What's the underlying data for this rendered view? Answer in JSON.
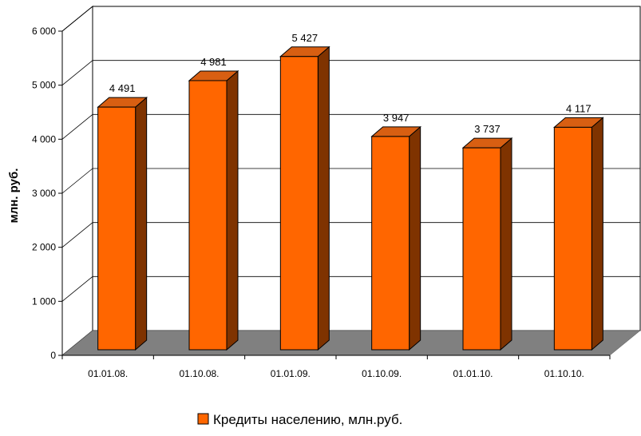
{
  "chart_data": {
    "type": "bar",
    "style": "3d",
    "title": "",
    "xlabel": "",
    "ylabel": "млн. руб.",
    "categories": [
      "01.01.08.",
      "01.10.08.",
      "01.01.09.",
      "01.10.09.",
      "01.01.10.",
      "01.10.10."
    ],
    "series": [
      {
        "name": "Кредиты населению, млн.руб.",
        "values": [
          4491,
          4981,
          5427,
          3947,
          3737,
          4117
        ],
        "labels": [
          "4 491",
          "4 981",
          "5 427",
          "3 947",
          "3 737",
          "4 117"
        ],
        "color": "#FF6600"
      }
    ],
    "ylim": [
      0,
      6000
    ],
    "yticks": [
      0,
      1000,
      2000,
      3000,
      4000,
      5000,
      6000
    ],
    "ytick_labels": [
      "0",
      "1 000",
      "2 000",
      "3 000",
      "4 000",
      "5 000",
      "6 000"
    ],
    "grid": true,
    "legend_position": "bottom",
    "colors": {
      "bar_front": "#FF6600",
      "bar_top": "#D85F12",
      "bar_side": "#7F3300",
      "floor": "#808080",
      "grid": "#000000"
    }
  }
}
